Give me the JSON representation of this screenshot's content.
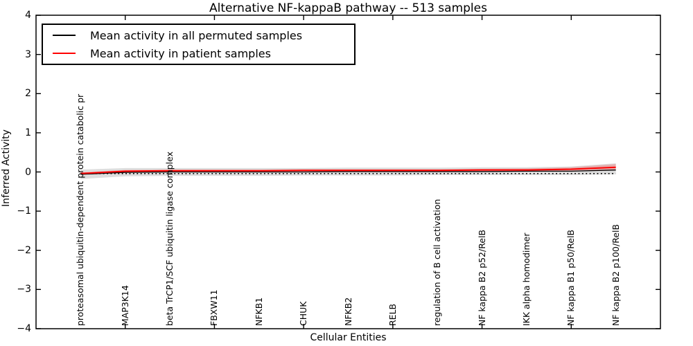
{
  "chart_data": {
    "type": "line",
    "title": "Alternative NF-kappaB pathway -- 513 samples",
    "xlabel": "Cellular Entities",
    "ylabel": "Inferred Activity",
    "ylim": [
      -4,
      4
    ],
    "yticks": [
      4,
      3,
      2,
      1,
      0,
      -1,
      -2,
      -3,
      -4
    ],
    "grid": false,
    "categories": [
      "proteasomal ubiquitin-dependent protein catabolic pr",
      "MAP3K14",
      "beta TrCP1/SCF ubiquitin ligase complex",
      "FBXW11",
      "NFKB1",
      "CHUK",
      "NFKB2",
      "RELB",
      "regulation of B cell activation",
      "NF kappa B2 p52/RelB",
      "IKK alpha homodimer",
      "NF kappa B1 p50/RelB",
      "NF kappa B2 p100/RelB"
    ],
    "x_major_tick_indices": [
      1,
      3,
      5,
      7,
      9,
      11
    ],
    "series": [
      {
        "name": "Mean activity in all permuted samples",
        "color": "#000000",
        "style": "solid",
        "width": 1.3,
        "values": [
          -0.06,
          -0.01,
          0.0,
          0.0,
          0.0,
          0.0,
          0.01,
          0.01,
          0.01,
          0.01,
          0.02,
          0.02,
          0.05
        ]
      },
      {
        "name": "Mean activity in patient samples",
        "color": "#ff0000",
        "style": "solid",
        "width": 2,
        "values": [
          -0.04,
          0.02,
          0.03,
          0.03,
          0.03,
          0.04,
          0.04,
          0.04,
          0.04,
          0.05,
          0.05,
          0.07,
          0.12
        ]
      }
    ],
    "baseline": {
      "style": "dotted",
      "color": "#000000",
      "value": -0.04
    },
    "bands": [
      {
        "name": "permuted-std-band",
        "color": "rgba(120,120,120,0.25)",
        "upper": [
          0.06,
          0.1,
          0.1,
          0.1,
          0.1,
          0.1,
          0.11,
          0.11,
          0.11,
          0.12,
          0.12,
          0.14,
          0.22
        ],
        "lower": [
          -0.18,
          -0.11,
          -0.1,
          -0.1,
          -0.1,
          -0.09,
          -0.09,
          -0.09,
          -0.08,
          -0.08,
          -0.08,
          -0.08,
          -0.06
        ]
      },
      {
        "name": "patient-std-band",
        "color": "rgba(255,0,0,0.22)",
        "upper": [
          -0.01,
          0.05,
          0.06,
          0.06,
          0.06,
          0.07,
          0.07,
          0.07,
          0.07,
          0.08,
          0.09,
          0.12,
          0.2
        ],
        "lower": [
          -0.07,
          -0.01,
          0.0,
          0.0,
          0.0,
          0.01,
          0.01,
          0.01,
          0.01,
          0.02,
          0.02,
          0.03,
          0.04
        ]
      }
    ],
    "legend": {
      "position": "upper left"
    }
  }
}
